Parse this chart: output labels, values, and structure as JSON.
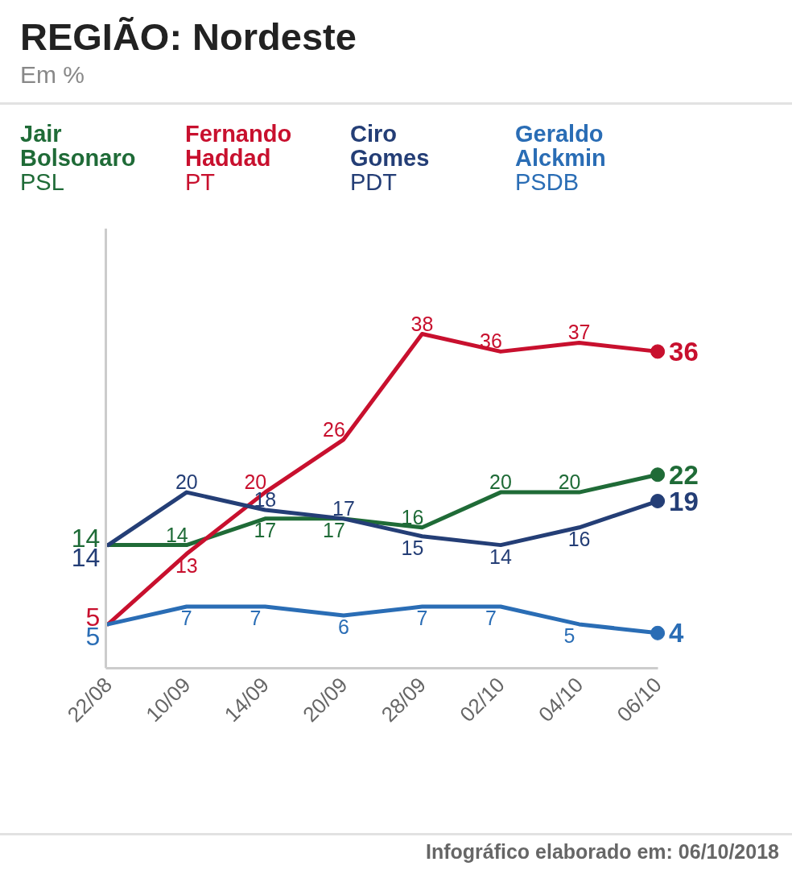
{
  "chart_data": {
    "type": "line",
    "title": "REGIÃO: Nordeste",
    "subtitle": "Em %",
    "categories": [
      "22/08",
      "10/09",
      "14/09",
      "20/09",
      "28/09",
      "02/10",
      "04/10",
      "06/10"
    ],
    "series": [
      {
        "name": "Jair Bolsonaro\nPSL",
        "color": "#1f6b37",
        "values": [
          14,
          14,
          17,
          17,
          16,
          20,
          20,
          22
        ]
      },
      {
        "name": "Fernando Haddad\nPT",
        "color": "#c8102e",
        "values": [
          5,
          13,
          20,
          26,
          38,
          36,
          37,
          36
        ]
      },
      {
        "name": "Ciro Gomes\nPDT",
        "color": "#243e76",
        "values": [
          14,
          20,
          18,
          17,
          15,
          14,
          16,
          19
        ]
      },
      {
        "name": "Geraldo Alckmin\nPSDB",
        "color": "#2a6db5",
        "values": [
          5,
          7,
          7,
          6,
          7,
          7,
          5,
          4
        ]
      }
    ],
    "ylim": [
      0,
      50
    ],
    "data_labels": true,
    "legend": "top",
    "tick_labels": "x",
    "line_style": "solid",
    "annotations": [
      "Infográfico elaborado em: 06/10/2018"
    ]
  }
}
